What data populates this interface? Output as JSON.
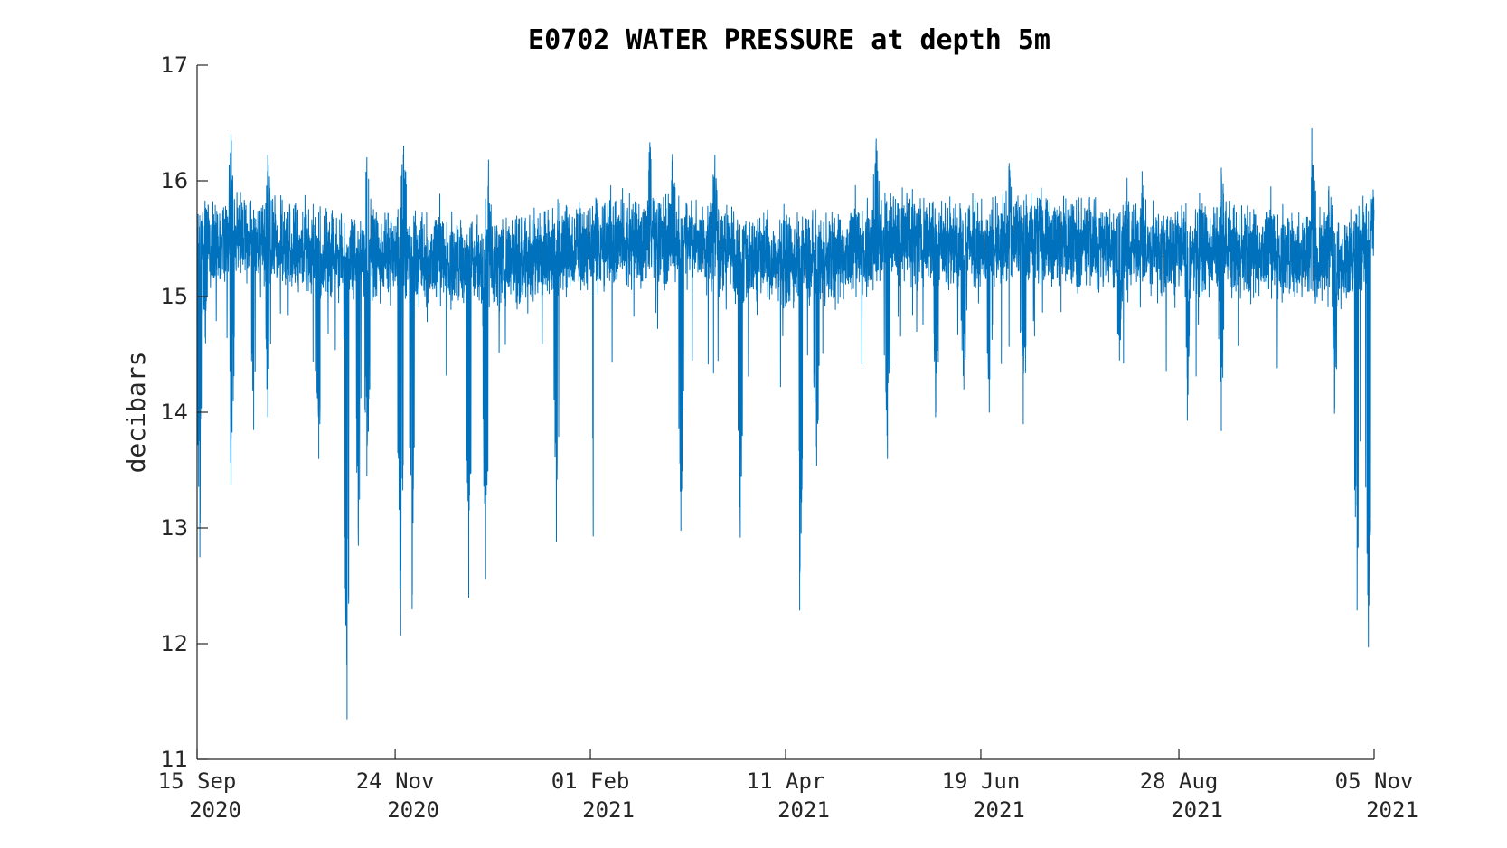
{
  "chart_data": {
    "type": "line",
    "title": "E0702 WATER PRESSURE at depth 5m",
    "xlabel": "",
    "ylabel": "decibars",
    "ylim": [
      11,
      17
    ],
    "yticks": [
      "11",
      "12",
      "13",
      "14",
      "15",
      "16",
      "17"
    ],
    "xlim": [
      "2020-09-15",
      "2021-11-05"
    ],
    "xticks": [
      {
        "date": "2020-09-15",
        "line1": "15 Sep",
        "line2": "2020"
      },
      {
        "date": "2020-11-24",
        "line1": "24 Nov",
        "line2": "2020"
      },
      {
        "date": "2021-02-01",
        "line1": "01 Feb",
        "line2": "2021"
      },
      {
        "date": "2021-04-11",
        "line1": "11 Apr",
        "line2": "2021"
      },
      {
        "date": "2021-06-19",
        "line1": "19 Jun",
        "line2": "2021"
      },
      {
        "date": "2021-08-28",
        "line1": "28 Aug",
        "line2": "2021"
      },
      {
        "date": "2021-11-05",
        "line1": "05 Nov",
        "line2": "2021"
      }
    ],
    "grid": false,
    "series_color": "#0072BD",
    "series": [
      {
        "baseline": [
          [
            "2020-09-15",
            15.45
          ],
          [
            "2020-10-01",
            15.5
          ],
          [
            "2020-10-20",
            15.4
          ],
          [
            "2020-11-05",
            15.35
          ],
          [
            "2020-11-24",
            15.35
          ],
          [
            "2020-12-15",
            15.3
          ],
          [
            "2021-01-01",
            15.3
          ],
          [
            "2021-01-20",
            15.4
          ],
          [
            "2021-02-10",
            15.45
          ],
          [
            "2021-03-01",
            15.5
          ],
          [
            "2021-03-20",
            15.4
          ],
          [
            "2021-04-11",
            15.3
          ],
          [
            "2021-05-01",
            15.35
          ],
          [
            "2021-05-20",
            15.5
          ],
          [
            "2021-06-10",
            15.45
          ],
          [
            "2021-06-19",
            15.45
          ],
          [
            "2021-07-10",
            15.5
          ],
          [
            "2021-08-01",
            15.45
          ],
          [
            "2021-08-28",
            15.4
          ],
          [
            "2021-09-20",
            15.4
          ],
          [
            "2021-10-10",
            15.35
          ],
          [
            "2021-10-25",
            15.3
          ],
          [
            "2021-11-05",
            15.55
          ]
        ],
        "highs": [
          [
            "2020-09-27",
            16.4
          ],
          [
            "2020-10-10",
            16.22
          ],
          [
            "2020-11-14",
            16.2
          ],
          [
            "2020-11-27",
            16.3
          ],
          [
            "2020-12-27",
            16.18
          ],
          [
            "2021-02-22",
            16.33
          ],
          [
            "2021-03-02",
            16.23
          ],
          [
            "2021-03-17",
            16.22
          ],
          [
            "2021-05-13",
            16.36
          ],
          [
            "2021-06-29",
            16.15
          ],
          [
            "2021-08-15",
            16.08
          ],
          [
            "2021-09-12",
            16.11
          ],
          [
            "2021-10-14",
            16.45
          ],
          [
            "2021-10-20",
            15.95
          ]
        ],
        "lows": [
          [
            "2020-09-16",
            12.75
          ],
          [
            "2020-09-18",
            14.6
          ],
          [
            "2020-09-27",
            13.38
          ],
          [
            "2020-10-05",
            13.85
          ],
          [
            "2020-10-10",
            13.96
          ],
          [
            "2020-10-28",
            13.6
          ],
          [
            "2020-11-07",
            11.35
          ],
          [
            "2020-11-11",
            12.85
          ],
          [
            "2020-11-14",
            13.45
          ],
          [
            "2020-11-26",
            12.07
          ],
          [
            "2020-11-30",
            12.3
          ],
          [
            "2020-12-20",
            12.4
          ],
          [
            "2020-12-26",
            12.56
          ],
          [
            "2021-01-20",
            12.88
          ],
          [
            "2021-02-02",
            12.93
          ],
          [
            "2021-03-05",
            12.98
          ],
          [
            "2021-03-26",
            12.92
          ],
          [
            "2021-04-16",
            12.29
          ],
          [
            "2021-04-22",
            13.54
          ],
          [
            "2021-05-17",
            13.6
          ],
          [
            "2021-06-03",
            13.96
          ],
          [
            "2021-06-13",
            14.2
          ],
          [
            "2021-06-22",
            14.0
          ],
          [
            "2021-07-04",
            13.9
          ],
          [
            "2021-08-07",
            14.45
          ],
          [
            "2021-08-31",
            13.93
          ],
          [
            "2021-09-12",
            13.84
          ],
          [
            "2021-10-22",
            13.99
          ],
          [
            "2021-10-30",
            12.29
          ],
          [
            "2021-11-03",
            11.97
          ]
        ]
      }
    ]
  }
}
